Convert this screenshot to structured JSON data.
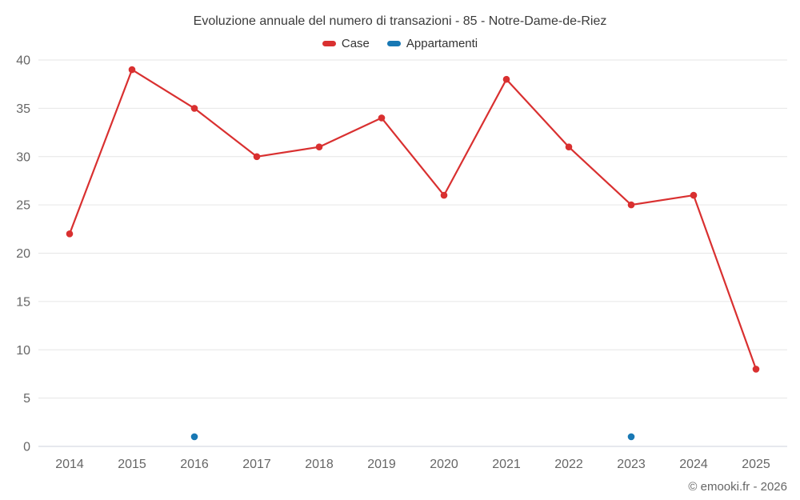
{
  "chart_data": {
    "type": "line",
    "title": "Evoluzione annuale del numero di transazioni - 85 - Notre-Dame-de-Riez",
    "categories": [
      "2014",
      "2015",
      "2016",
      "2017",
      "2018",
      "2019",
      "2020",
      "2021",
      "2022",
      "2023",
      "2024",
      "2025"
    ],
    "series": [
      {
        "name": "Case",
        "color": "#d93030",
        "values": [
          22,
          39,
          35,
          30,
          31,
          34,
          26,
          38,
          31,
          25,
          26,
          8
        ]
      },
      {
        "name": "Appartamenti",
        "color": "#1878b4",
        "values": [
          null,
          null,
          1,
          null,
          null,
          null,
          null,
          null,
          null,
          1,
          null,
          null
        ]
      }
    ],
    "ylim": [
      0,
      40
    ],
    "ytick_interval": 5,
    "xlabel": "",
    "ylabel": "",
    "grid": "horizontal",
    "legend_position": "top",
    "colors": {
      "grid": "#e6e6e6",
      "axis_line": "#ccd2dd",
      "axis_label": "#666666",
      "title": "#3b3b3b"
    }
  },
  "footer": {
    "text": "© emooki.fr - 2026"
  }
}
